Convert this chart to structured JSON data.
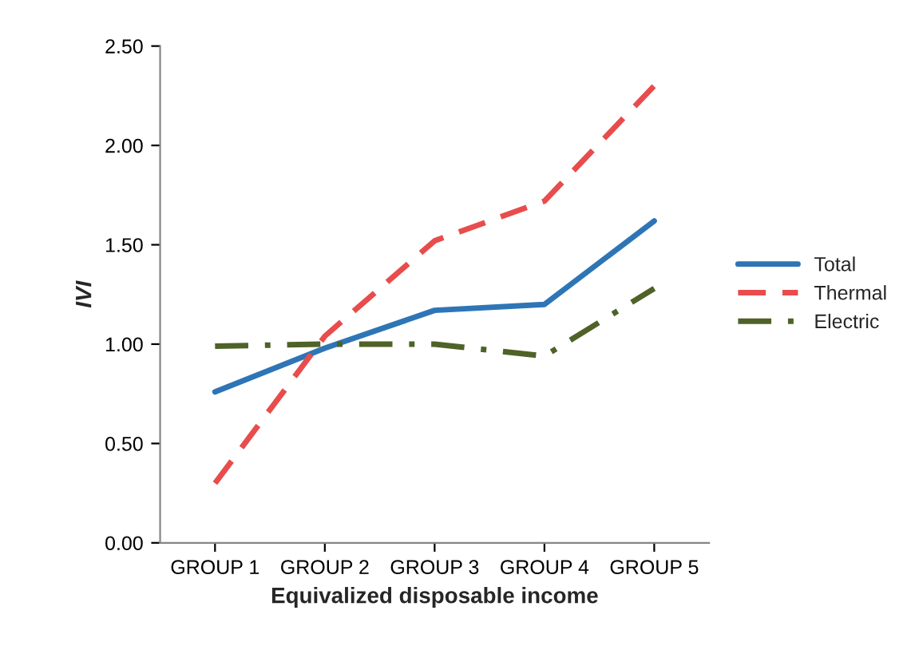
{
  "chart_data": {
    "type": "line",
    "xlabel": "Equivalized disposable income",
    "ylabel": "IVI",
    "categories": [
      "GROUP 1",
      "GROUP 2",
      "GROUP 3",
      "GROUP 4",
      "GROUP 5"
    ],
    "series": [
      {
        "name": "Total",
        "color": "#2e75b6",
        "line_style": "solid",
        "values": [
          0.76,
          0.98,
          1.17,
          1.2,
          1.62
        ]
      },
      {
        "name": "Thermal",
        "color": "#e84c4c",
        "line_style": "dashed",
        "values": [
          0.3,
          1.04,
          1.52,
          1.72,
          2.3
        ]
      },
      {
        "name": "Electric",
        "color": "#4f6228",
        "line_style": "dashdot",
        "values": [
          0.99,
          1.0,
          1.0,
          0.94,
          1.28
        ]
      }
    ],
    "ylim": [
      0,
      2.5
    ],
    "yticks": [
      {
        "value": 0,
        "label": "0.00"
      },
      {
        "value": 0.5,
        "label": "0.50"
      },
      {
        "value": 1,
        "label": "1.00"
      },
      {
        "value": 1.5,
        "label": "1.50"
      },
      {
        "value": 2,
        "label": "2.00"
      },
      {
        "value": 2.5,
        "label": "2.50"
      }
    ],
    "grid": false,
    "legend": "right",
    "marker": "none"
  }
}
